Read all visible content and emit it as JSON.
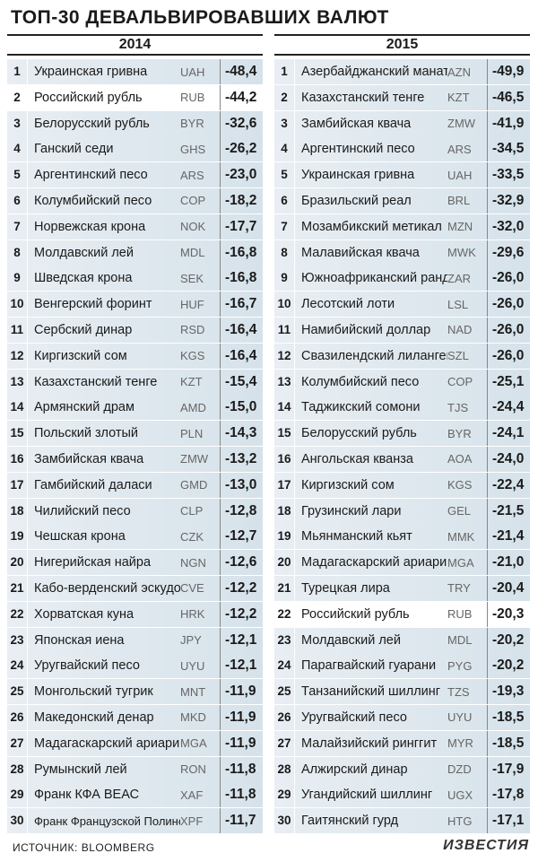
{
  "title": "ТОП-30 ДЕВАЛЬВИРОВАВШИХ ВАЛЮТ",
  "source": "ИСТОЧНИК: BLOOMBERG",
  "logo": "ИЗВЕСТИЯ",
  "columns": [
    {
      "year": "2014",
      "rows": [
        {
          "n": "1",
          "name": "Украинская гривна",
          "code": "UAH",
          "value": "-48,4"
        },
        {
          "n": "2",
          "name": "Российский рубль",
          "code": "RUB",
          "value": "-44,2",
          "highlight": true
        },
        {
          "n": "3",
          "name": "Белорусский рубль",
          "code": "BYR",
          "value": "-32,6"
        },
        {
          "n": "4",
          "name": "Ганский седи",
          "code": "GHS",
          "value": "-26,2"
        },
        {
          "n": "5",
          "name": "Аргентинский песо",
          "code": "ARS",
          "value": "-23,0"
        },
        {
          "n": "6",
          "name": "Колумбийский песо",
          "code": "COP",
          "value": "-18,2"
        },
        {
          "n": "7",
          "name": "Норвежская крона",
          "code": "NOK",
          "value": "-17,7"
        },
        {
          "n": "8",
          "name": "Молдавский лей",
          "code": "MDL",
          "value": "-16,8"
        },
        {
          "n": "9",
          "name": "Шведская крона",
          "code": "SEK",
          "value": "-16,8"
        },
        {
          "n": "10",
          "name": "Венгерский форинт",
          "code": "HUF",
          "value": "-16,7"
        },
        {
          "n": "11",
          "name": "Сербский динар",
          "code": "RSD",
          "value": "-16,4"
        },
        {
          "n": "12",
          "name": "Киргизский сом",
          "code": "KGS",
          "value": "-16,4"
        },
        {
          "n": "13",
          "name": "Казахстанский тенге",
          "code": "KZT",
          "value": "-15,4"
        },
        {
          "n": "14",
          "name": "Армянский драм",
          "code": "AMD",
          "value": "-15,0"
        },
        {
          "n": "15",
          "name": "Польский злотый",
          "code": "PLN",
          "value": "-14,3"
        },
        {
          "n": "16",
          "name": "Замбийская квача",
          "code": "ZMW",
          "value": "-13,2"
        },
        {
          "n": "17",
          "name": "Гамбийский даласи",
          "code": "GMD",
          "value": "-13,0"
        },
        {
          "n": "18",
          "name": "Чилийский песо",
          "code": "CLP",
          "value": "-12,8"
        },
        {
          "n": "19",
          "name": "Чешская крона",
          "code": "CZK",
          "value": "-12,7"
        },
        {
          "n": "20",
          "name": "Нигерийская найра",
          "code": "NGN",
          "value": "-12,6"
        },
        {
          "n": "21",
          "name": "Кабо-верденский эскудо",
          "code": "CVE",
          "value": "-12,2"
        },
        {
          "n": "22",
          "name": "Хорватская куна",
          "code": "HRK",
          "value": "-12,2"
        },
        {
          "n": "23",
          "name": "Японская иена",
          "code": "JPY",
          "value": "-12,1"
        },
        {
          "n": "24",
          "name": "Уругвайский песо",
          "code": "UYU",
          "value": "-12,1"
        },
        {
          "n": "25",
          "name": "Монгольский тугрик",
          "code": "MNT",
          "value": "-11,9"
        },
        {
          "n": "26",
          "name": "Македонский денар",
          "code": "MKD",
          "value": "-11,9"
        },
        {
          "n": "27",
          "name": "Мадагаскарский ариари",
          "code": "MGA",
          "value": "-11,9"
        },
        {
          "n": "28",
          "name": "Румынский лей",
          "code": "RON",
          "value": "-11,8"
        },
        {
          "n": "29",
          "name": "Франк КФА ВЕАС",
          "code": "XAF",
          "value": "-11,8"
        },
        {
          "n": "30",
          "name": "Франк Французской Полинезии",
          "code": "XPF",
          "value": "-11,7"
        }
      ]
    },
    {
      "year": "2015",
      "rows": [
        {
          "n": "1",
          "name": "Азербайджанский манат",
          "code": "AZN",
          "value": "-49,9"
        },
        {
          "n": "2",
          "name": "Казахстанский тенге",
          "code": "KZT",
          "value": "-46,5"
        },
        {
          "n": "3",
          "name": "Замбийская квача",
          "code": "ZMW",
          "value": "-41,9"
        },
        {
          "n": "4",
          "name": "Аргентинский песо",
          "code": "ARS",
          "value": "-34,5"
        },
        {
          "n": "5",
          "name": "Украинская гривна",
          "code": "UAH",
          "value": "-33,5"
        },
        {
          "n": "6",
          "name": "Бразильский реал",
          "code": "BRL",
          "value": "-32,9"
        },
        {
          "n": "7",
          "name": "Мозамбикский метикал",
          "code": "MZN",
          "value": "-32,0"
        },
        {
          "n": "8",
          "name": "Малавийская квача",
          "code": "MWK",
          "value": "-29,6"
        },
        {
          "n": "9",
          "name": "Южноафриканский ранд",
          "code": "ZAR",
          "value": "-26,0"
        },
        {
          "n": "10",
          "name": "Лесотский лоти",
          "code": "LSL",
          "value": "-26,0"
        },
        {
          "n": "11",
          "name": "Намибийский доллар",
          "code": "NAD",
          "value": "-26,0"
        },
        {
          "n": "12",
          "name": "Свазилендский лилангени",
          "code": "SZL",
          "value": "-26,0"
        },
        {
          "n": "13",
          "name": "Колумбийский песо",
          "code": "COP",
          "value": "-25,1"
        },
        {
          "n": "14",
          "name": "Таджикский сомони",
          "code": "TJS",
          "value": "-24,4"
        },
        {
          "n": "15",
          "name": "Белорусский рубль",
          "code": "BYR",
          "value": "-24,1"
        },
        {
          "n": "16",
          "name": "Ангольская кванза",
          "code": "AOA",
          "value": "-24,0"
        },
        {
          "n": "17",
          "name": "Киргизский сом",
          "code": "KGS",
          "value": "-22,4"
        },
        {
          "n": "18",
          "name": "Грузинский лари",
          "code": "GEL",
          "value": "-21,5"
        },
        {
          "n": "19",
          "name": "Мьянманский кьят",
          "code": "MMK",
          "value": "-21,4"
        },
        {
          "n": "20",
          "name": "Мадагаскарский ариари",
          "code": "MGA",
          "value": "-21,0"
        },
        {
          "n": "21",
          "name": "Турецкая лира",
          "code": "TRY",
          "value": "-20,4"
        },
        {
          "n": "22",
          "name": "Российский рубль",
          "code": "RUB",
          "value": "-20,3",
          "highlight": true
        },
        {
          "n": "23",
          "name": "Молдавский лей",
          "code": "MDL",
          "value": "-20,2"
        },
        {
          "n": "24",
          "name": "Парагвайский гуарани",
          "code": "PYG",
          "value": "-20,2"
        },
        {
          "n": "25",
          "name": "Танзанийский шиллинг",
          "code": "TZS",
          "value": "-19,3"
        },
        {
          "n": "26",
          "name": "Уругвайский песо",
          "code": "UYU",
          "value": "-18,5"
        },
        {
          "n": "27",
          "name": "Малайзийский ринггит",
          "code": "MYR",
          "value": "-18,5"
        },
        {
          "n": "28",
          "name": "Алжирский динар",
          "code": "DZD",
          "value": "-17,9"
        },
        {
          "n": "29",
          "name": "Угандийский шиллинг",
          "code": "UGX",
          "value": "-17,8"
        },
        {
          "n": "30",
          "name": "Гаитянский гурд",
          "code": "HTG",
          "value": "-17,1"
        }
      ]
    }
  ]
}
